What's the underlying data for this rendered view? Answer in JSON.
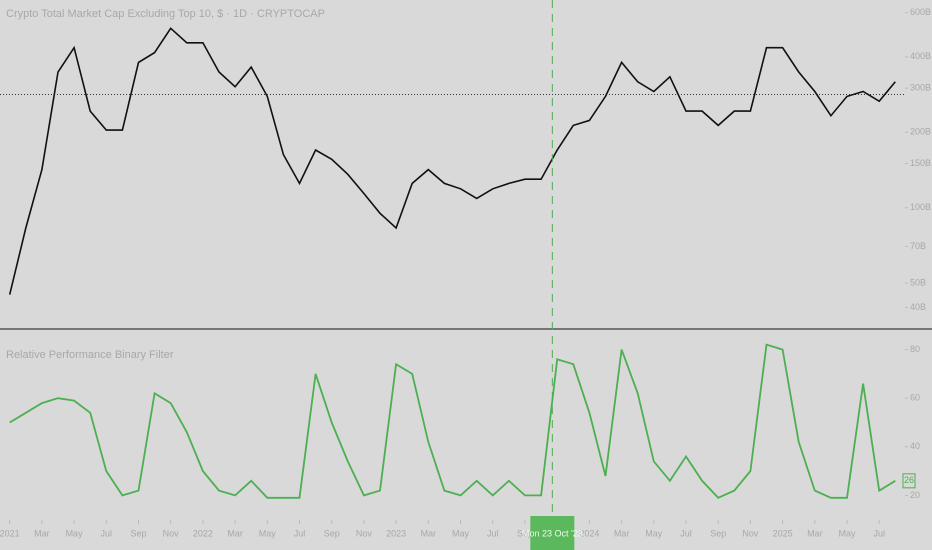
{
  "chart_data": [
    {
      "type": "line",
      "title": "Crypto Total Market Cap Excluding Top 10, $ · 1D · CRYPTOCAP",
      "x": [
        0,
        1,
        2,
        3,
        4,
        5,
        6,
        7,
        8,
        9,
        10,
        11,
        12,
        13,
        14,
        15,
        16,
        17,
        18,
        19,
        20,
        21,
        22,
        23,
        24,
        25,
        26,
        27,
        28,
        29,
        30,
        31,
        32,
        33,
        34,
        35,
        36,
        37,
        38,
        39,
        40,
        41,
        42,
        43,
        44,
        45,
        46,
        47,
        48,
        49,
        50,
        51,
        52,
        53,
        54,
        55
      ],
      "series": [
        {
          "name": "CRYPTOCAP",
          "color": "#111111",
          "values": [
            45,
            83,
            142,
            348,
            435,
            243,
            204,
            204,
            380,
            416,
            520,
            455,
            455,
            348,
            304,
            364,
            278,
            163,
            125,
            170,
            156,
            136,
            114,
            95,
            83,
            125,
            142,
            125,
            119,
            109,
            119,
            125,
            130,
            130,
            170,
            213,
            223,
            278,
            380,
            318,
            291,
            333,
            243,
            243,
            213,
            243,
            243,
            435,
            435,
            348,
            291,
            233,
            278,
            291,
            266,
            318
          ]
        }
      ],
      "price_line": 283,
      "log_scale": true,
      "xlim": [
        -0.6,
        55.6
      ],
      "ylim": [
        35,
        650
      ],
      "yticks": [
        {
          "value": 600,
          "label": "600B"
        },
        {
          "value": 400,
          "label": "400B"
        },
        {
          "value": 300,
          "label": "300B"
        },
        {
          "value": 200,
          "label": "200B"
        },
        {
          "value": 150,
          "label": "150B"
        },
        {
          "value": 100,
          "label": "100B"
        },
        {
          "value": 70,
          "label": "70B"
        },
        {
          "value": 50,
          "label": "50B"
        },
        {
          "value": 40,
          "label": "40B"
        }
      ]
    },
    {
      "type": "line",
      "title": "Relative Performance Binary Filter",
      "x": [
        0,
        1,
        2,
        3,
        4,
        5,
        6,
        7,
        8,
        9,
        10,
        11,
        12,
        13,
        14,
        15,
        16,
        17,
        18,
        19,
        20,
        21,
        22,
        23,
        24,
        25,
        26,
        27,
        28,
        29,
        30,
        31,
        32,
        33,
        34,
        35,
        36,
        37,
        38,
        39,
        40,
        41,
        42,
        43,
        44,
        45,
        46,
        47,
        48,
        49,
        50,
        51,
        52,
        53,
        54,
        55
      ],
      "series": [
        {
          "name": "Filter",
          "color": "#4caf50",
          "values": [
            50,
            54,
            58,
            60,
            59,
            54,
            30,
            20,
            22,
            62,
            58,
            46,
            30,
            22,
            20,
            26,
            19,
            19,
            19,
            70,
            50,
            34,
            20,
            22,
            74,
            70,
            42,
            22,
            20,
            26,
            20,
            26,
            20,
            20,
            76,
            74,
            54,
            28,
            80,
            62,
            34,
            26,
            36,
            26,
            19,
            22,
            30,
            82,
            80,
            42,
            22,
            19,
            19,
            66,
            22,
            26
          ]
        }
      ],
      "last_label": "26",
      "xlim": [
        -0.6,
        55.6
      ],
      "ylim": [
        14,
        86
      ],
      "yticks": [
        20,
        40,
        60,
        80
      ],
      "xticks": [
        {
          "value": 0,
          "label": "2021"
        },
        {
          "value": 2,
          "label": "Mar"
        },
        {
          "value": 4,
          "label": "May"
        },
        {
          "value": 6,
          "label": "Jul"
        },
        {
          "value": 8,
          "label": "Sep"
        },
        {
          "value": 10,
          "label": "Nov"
        },
        {
          "value": 12,
          "label": "2022"
        },
        {
          "value": 14,
          "label": "Mar"
        },
        {
          "value": 16,
          "label": "May"
        },
        {
          "value": 18,
          "label": "Jul"
        },
        {
          "value": 20,
          "label": "Sep"
        },
        {
          "value": 22,
          "label": "Nov"
        },
        {
          "value": 24,
          "label": "2023"
        },
        {
          "value": 26,
          "label": "Mar"
        },
        {
          "value": 28,
          "label": "May"
        },
        {
          "value": 30,
          "label": "Jul"
        },
        {
          "value": 32,
          "label": "Sep"
        },
        {
          "value": 36,
          "label": "2024"
        },
        {
          "value": 38,
          "label": "Mar"
        },
        {
          "value": 40,
          "label": "May"
        },
        {
          "value": 42,
          "label": "Jul"
        },
        {
          "value": 44,
          "label": "Sep"
        },
        {
          "value": 46,
          "label": "Nov"
        },
        {
          "value": 48,
          "label": "2025"
        },
        {
          "value": 50,
          "label": "Mar"
        },
        {
          "value": 52,
          "label": "May"
        },
        {
          "value": 54,
          "label": "Jul"
        }
      ],
      "crosshair": {
        "x": 33.7,
        "label": "Mon 23 Oct '23"
      }
    }
  ]
}
